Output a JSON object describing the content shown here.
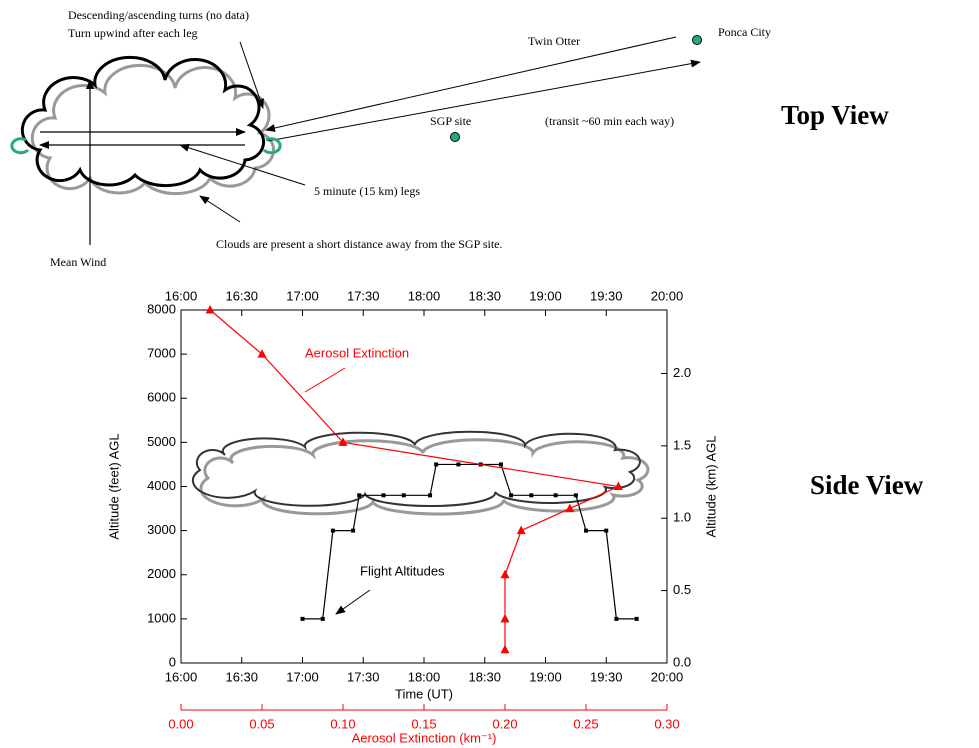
{
  "top_view": {
    "heading": "Top View",
    "labels": [
      "Descending/ascending turns (no data)",
      "Turn upwind after each leg",
      "Twin Otter",
      "Ponca City",
      "SGP site",
      "(transit ~60 min each way)",
      "5 minute (15 km) legs",
      "Clouds are present a short distance away from the SGP site.",
      "Mean Wind"
    ]
  },
  "side_view_heading": "Side View",
  "chart_data": {
    "type": "line",
    "xlabel": "Time (UT)",
    "x2label": "Aerosol Extinction (km⁻¹)",
    "ylabel": "Altitude (feet) AGL",
    "y2label": "Altitude (km) AGL",
    "xlim": [
      "16:00",
      "20:00"
    ],
    "xticks": [
      "16:00",
      "16:30",
      "17:00",
      "17:30",
      "18:00",
      "18:30",
      "19:00",
      "19:30",
      "20:00"
    ],
    "x2lim": [
      0,
      0.3
    ],
    "x2ticks": [
      {
        "value": 0,
        "label": "0.00"
      },
      {
        "value": 0.05,
        "label": "0.05"
      },
      {
        "value": 0.1,
        "label": "0.10"
      },
      {
        "value": 0.15,
        "label": "0.15"
      },
      {
        "value": 0.2,
        "label": "0.20"
      },
      {
        "value": 0.25,
        "label": "0.25"
      },
      {
        "value": 0.3,
        "label": "0.30"
      }
    ],
    "ylim": [
      0,
      8000
    ],
    "yticks": [
      0,
      1000,
      2000,
      3000,
      4000,
      5000,
      6000,
      7000,
      8000
    ],
    "y2lim": [
      0,
      2.4384
    ],
    "y2ticks": [
      {
        "value": 0,
        "label": "0.0"
      },
      {
        "value": 0.5,
        "label": "0.5"
      },
      {
        "value": 1,
        "label": "1.0"
      },
      {
        "value": 1.5,
        "label": "1.5"
      },
      {
        "value": 2,
        "label": "2.0"
      }
    ],
    "series": [
      {
        "name": "Flight Altitudes",
        "color": "#000000",
        "x": [
          "17:00",
          "17:10",
          "17:15",
          "17:25",
          "17:28",
          "17:40",
          "17:50",
          "18:03",
          "18:06",
          "18:17",
          "18:28",
          "18:38",
          "18:43",
          "18:53",
          "19:05",
          "19:15",
          "19:20",
          "19:30",
          "19:35",
          "19:45"
        ],
        "values": [
          1000,
          1000,
          3000,
          3000,
          3800,
          3800,
          3800,
          3800,
          4500,
          4500,
          4500,
          4500,
          3800,
          3800,
          3800,
          3800,
          3000,
          3000,
          1000,
          1000
        ]
      },
      {
        "name": "Aerosol Extinction",
        "color": "#ff0000",
        "axis": "x2",
        "x": [
          0.018,
          0.05,
          0.1,
          0.27,
          0.24,
          0.21,
          0.2,
          0.2,
          0.2
        ],
        "values": [
          8000,
          7000,
          5000,
          4000,
          3500,
          3000,
          2000,
          1000,
          300
        ]
      }
    ]
  }
}
